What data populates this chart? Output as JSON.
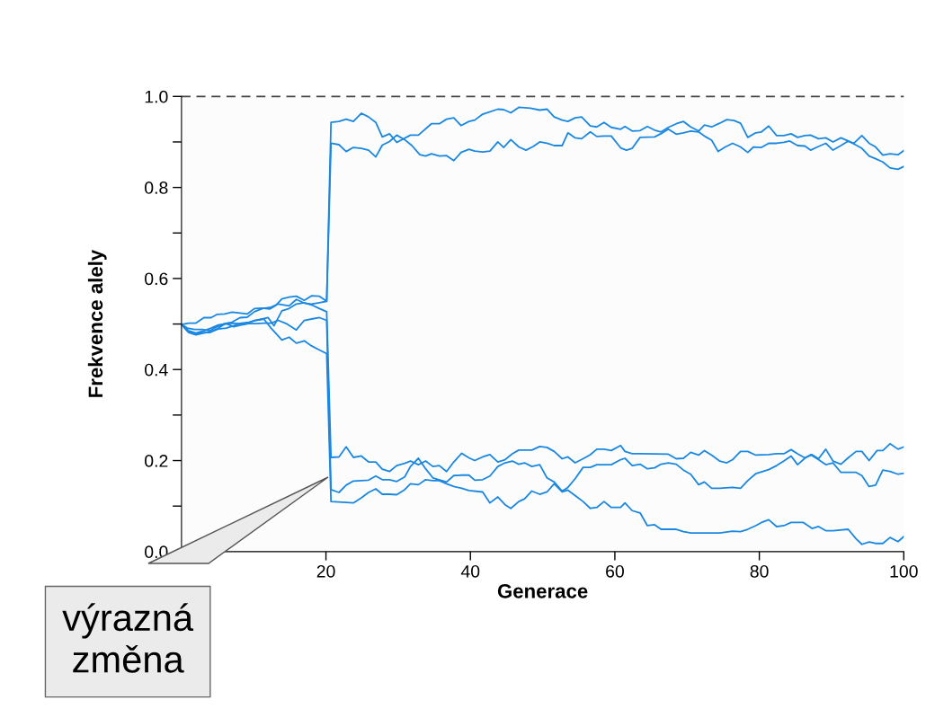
{
  "chart_data": {
    "type": "line",
    "xlabel": "Generace",
    "ylabel": "Frekvence alely",
    "xlim": [
      0,
      100
    ],
    "ylim": [
      0,
      1.0
    ],
    "xticks": [
      20,
      40,
      60,
      80,
      100
    ],
    "yticks": [
      {
        "value": 0,
        "label": "0.0"
      },
      {
        "value": 0.1,
        "label": null
      },
      0.2,
      {
        "value": 0.3,
        "label": null
      },
      0.4,
      {
        "value": 0.5,
        "label": null
      },
      0.6,
      {
        "value": 0.7,
        "label": null
      },
      0.8,
      {
        "value": 0.9,
        "label": null
      },
      {
        "value": 1.0,
        "label": "1.0"
      }
    ],
    "ref_lines": [
      {
        "axis": "y",
        "value": 1.0,
        "color": "#444444",
        "line_style": "dashed"
      }
    ],
    "annotations": [
      "výrazná změna"
    ],
    "series": [
      {
        "color": "#1a87e0",
        "x": [
          0,
          1.0,
          2.0,
          3.1,
          4.1,
          4.9,
          6.0,
          7.0,
          8.1,
          9.1,
          10.1,
          11.2,
          12.2,
          13.0,
          13.9,
          14.9,
          15.9,
          17.0,
          18.0,
          19.1,
          20.1,
          20.7,
          21.8,
          22.8,
          23.8,
          24.9,
          25.9,
          26.9,
          27.8,
          28.8,
          29.8,
          31.7,
          32.8,
          34.6,
          35.7,
          36.7,
          37.7,
          38.7,
          39.8,
          40.6,
          41.7,
          43.8,
          44.6,
          45.6,
          46.7,
          48.3,
          49.6,
          50.6,
          51.6,
          52.7,
          53.5,
          54.5,
          55.4,
          56.6,
          57.5,
          58.5,
          59.5,
          60.8,
          61.4,
          62.4,
          63.5,
          64.5,
          65.5,
          66.4,
          67.4,
          68.5,
          69.5,
          70.5,
          71.6,
          72.4,
          73.4,
          74.5,
          75.5,
          76.5,
          77.4,
          78.4,
          79.5,
          80.3,
          81.3,
          82.4,
          83.4,
          84.4,
          85.3,
          86.3,
          87.1,
          88.2,
          89.2,
          90.2,
          91.3,
          92.3,
          93.1,
          94.2,
          95.2,
          96.1,
          97.1,
          98.1,
          99.2,
          100
        ],
        "values": [
          0.499,
          0.502,
          0.502,
          0.514,
          0.514,
          0.521,
          0.522,
          0.526,
          0.524,
          0.522,
          0.534,
          0.535,
          0.533,
          0.54,
          0.555,
          0.559,
          0.561,
          0.552,
          0.562,
          0.561,
          0.55,
          0.943,
          0.945,
          0.95,
          0.945,
          0.963,
          0.955,
          0.943,
          0.911,
          0.918,
          0.899,
          0.915,
          0.915,
          0.94,
          0.94,
          0.95,
          0.953,
          0.936,
          0.945,
          0.948,
          0.961,
          0.972,
          0.971,
          0.964,
          0.976,
          0.974,
          0.97,
          0.972,
          0.955,
          0.948,
          0.945,
          0.953,
          0.955,
          0.935,
          0.933,
          0.943,
          0.932,
          0.928,
          0.934,
          0.924,
          0.925,
          0.934,
          0.926,
          0.922,
          0.932,
          0.94,
          0.945,
          0.933,
          0.924,
          0.937,
          0.933,
          0.941,
          0.949,
          0.947,
          0.941,
          0.91,
          0.92,
          0.922,
          0.935,
          0.914,
          0.914,
          0.918,
          0.91,
          0.914,
          0.915,
          0.907,
          0.909,
          0.9,
          0.909,
          0.902,
          0.897,
          0.914,
          0.897,
          0.889,
          0.871,
          0.874,
          0.872,
          0.881
        ]
      },
      {
        "color": "#1a87e0",
        "x": [
          0,
          0.8,
          1.8,
          2.9,
          3.9,
          4.9,
          6.0,
          7.0,
          8.1,
          9.1,
          10.1,
          11.2,
          12.4,
          13.4,
          14.9,
          15.9,
          17.0,
          18.0,
          19.1,
          20.1,
          20.7,
          21.8,
          22.8,
          23.8,
          24.9,
          25.9,
          26.9,
          27.8,
          28.8,
          29.8,
          30.9,
          31.9,
          33.0,
          33.8,
          34.6,
          35.7,
          36.7,
          37.7,
          38.7,
          39.8,
          40.6,
          41.7,
          42.7,
          43.8,
          44.6,
          45.6,
          46.7,
          47.7,
          48.7,
          49.6,
          50.6,
          51.6,
          52.7,
          53.5,
          54.5,
          55.4,
          56.6,
          57.5,
          58.5,
          59.5,
          60.8,
          61.6,
          62.4,
          63.5,
          65.5,
          66.6,
          67.4,
          68.5,
          69.5,
          70.5,
          71.6,
          72.6,
          73.4,
          74.3,
          75.3,
          76.3,
          77.4,
          78.4,
          79.2,
          80.3,
          81.3,
          82.4,
          83.4,
          84.2,
          85.3,
          86.3,
          87.1,
          88.2,
          89.2,
          90.2,
          91.3,
          92.3,
          93.4,
          94.2,
          95.2,
          96.1,
          97.1,
          98.1,
          99.2,
          100
        ],
        "values": [
          0.499,
          0.491,
          0.488,
          0.488,
          0.485,
          0.494,
          0.501,
          0.504,
          0.514,
          0.515,
          0.527,
          0.534,
          0.537,
          0.544,
          0.54,
          0.554,
          0.546,
          0.544,
          0.547,
          0.55,
          0.897,
          0.894,
          0.879,
          0.888,
          0.886,
          0.882,
          0.867,
          0.893,
          0.901,
          0.915,
          0.905,
          0.892,
          0.872,
          0.869,
          0.874,
          0.869,
          0.87,
          0.859,
          0.877,
          0.884,
          0.88,
          0.878,
          0.88,
          0.9,
          0.888,
          0.905,
          0.889,
          0.882,
          0.89,
          0.9,
          0.897,
          0.892,
          0.892,
          0.92,
          0.909,
          0.907,
          0.922,
          0.912,
          0.913,
          0.913,
          0.887,
          0.882,
          0.886,
          0.91,
          0.911,
          0.92,
          0.928,
          0.917,
          0.92,
          0.924,
          0.922,
          0.911,
          0.904,
          0.879,
          0.889,
          0.897,
          0.889,
          0.877,
          0.889,
          0.888,
          0.897,
          0.897,
          0.899,
          0.902,
          0.892,
          0.891,
          0.882,
          0.89,
          0.897,
          0.882,
          0.892,
          0.902,
          0.893,
          0.886,
          0.869,
          0.863,
          0.856,
          0.843,
          0.84,
          0.846
        ]
      },
      {
        "color": "#1a87e0",
        "x": [
          0,
          0.8,
          1.8,
          2.9,
          3.9,
          4.9,
          6.0,
          7.0,
          8.1,
          9.1,
          10.1,
          11.2,
          12.0,
          12.8,
          13.9,
          14.9,
          15.9,
          17.0,
          18.0,
          19.1,
          20.1,
          20.7,
          21.8,
          22.8,
          23.8,
          24.9,
          25.9,
          26.9,
          27.8,
          28.8,
          29.8,
          30.9,
          31.7,
          32.8,
          33.8,
          34.8,
          35.7,
          36.7,
          37.7,
          38.8,
          39.8,
          40.6,
          41.7,
          42.7,
          43.8,
          44.8,
          45.8,
          46.7,
          48.5,
          49.6,
          50.6,
          51.6,
          52.7,
          53.5,
          54.5,
          55.6,
          56.6,
          57.5,
          58.5,
          59.5,
          60.8,
          61.4,
          62.4,
          63.5,
          67.4,
          68.5,
          69.5,
          70.5,
          71.6,
          72.4,
          73.4,
          74.5,
          75.5,
          76.3,
          77.4,
          78.4,
          79.5,
          81.3,
          82.4,
          83.4,
          84.4,
          85.3,
          86.3,
          87.3,
          88.2,
          89.2,
          90.2,
          91.3,
          92.3,
          93.4,
          94.2,
          95.2,
          96.3,
          97.1,
          98.1,
          99.2,
          100
        ],
        "values": [
          0.499,
          0.485,
          0.478,
          0.481,
          0.481,
          0.489,
          0.5,
          0.502,
          0.501,
          0.501,
          0.508,
          0.511,
          0.514,
          0.496,
          0.529,
          0.534,
          0.544,
          0.547,
          0.542,
          0.534,
          0.527,
          0.207,
          0.208,
          0.23,
          0.207,
          0.21,
          0.197,
          0.197,
          0.181,
          0.176,
          0.189,
          0.194,
          0.199,
          0.191,
          0.199,
          0.187,
          0.189,
          0.176,
          0.197,
          0.216,
          0.206,
          0.2,
          0.208,
          0.213,
          0.197,
          0.202,
          0.215,
          0.223,
          0.223,
          0.231,
          0.229,
          0.22,
          0.204,
          0.208,
          0.195,
          0.204,
          0.213,
          0.225,
          0.225,
          0.222,
          0.233,
          0.22,
          0.215,
          0.215,
          0.214,
          0.204,
          0.205,
          0.218,
          0.212,
          0.222,
          0.212,
          0.199,
          0.195,
          0.202,
          0.22,
          0.22,
          0.212,
          0.213,
          0.215,
          0.215,
          0.224,
          0.215,
          0.206,
          0.213,
          0.204,
          0.225,
          0.199,
          0.192,
          0.206,
          0.22,
          0.22,
          0.2,
          0.222,
          0.222,
          0.237,
          0.225,
          0.23
        ]
      },
      {
        "color": "#1a87e0",
        "x": [
          0,
          1.0,
          2.0,
          3.1,
          4.1,
          5.1,
          6.2,
          7.2,
          8.3,
          9.3,
          10.3,
          11.4,
          12.4,
          13.4,
          14.5,
          15.9,
          17.0,
          18.0,
          19.1,
          20.1,
          20.7,
          21.8,
          22.8,
          23.8,
          25.9,
          26.9,
          27.8,
          28.8,
          29.8,
          30.9,
          31.7,
          32.8,
          33.8,
          34.8,
          36.7,
          37.7,
          38.8,
          39.8,
          40.6,
          41.7,
          42.7,
          43.8,
          44.8,
          45.8,
          46.7,
          47.5,
          48.5,
          49.6,
          50.6,
          51.6,
          52.7,
          53.5,
          54.5,
          55.6,
          56.6,
          57.5,
          58.5,
          59.5,
          60.8,
          61.4,
          62.4,
          63.5,
          64.5,
          65.5,
          66.4,
          67.4,
          68.5,
          69.5,
          70.5,
          71.6,
          72.4,
          73.4,
          74.5,
          76.3,
          77.4,
          78.4,
          79.5,
          80.5,
          81.3,
          82.4,
          83.4,
          84.4,
          85.3,
          86.3,
          87.1,
          88.2,
          89.2,
          90.2,
          91.3,
          92.3,
          93.4,
          94.2,
          95.2,
          96.1,
          97.1,
          98.1,
          99.2,
          100
        ],
        "values": [
          0.499,
          0.485,
          0.48,
          0.485,
          0.491,
          0.498,
          0.501,
          0.494,
          0.498,
          0.501,
          0.501,
          0.502,
          0.502,
          0.508,
          0.501,
          0.487,
          0.508,
          0.511,
          0.514,
          0.508,
          0.136,
          0.13,
          0.146,
          0.155,
          0.157,
          0.166,
          0.158,
          0.158,
          0.154,
          0.164,
          0.187,
          0.205,
          0.182,
          0.162,
          0.153,
          0.167,
          0.168,
          0.168,
          0.157,
          0.158,
          0.166,
          0.187,
          0.195,
          0.199,
          0.192,
          0.195,
          0.187,
          0.191,
          0.162,
          0.153,
          0.133,
          0.141,
          0.16,
          0.185,
          0.185,
          0.191,
          0.191,
          0.191,
          0.202,
          0.205,
          0.189,
          0.192,
          0.182,
          0.184,
          0.192,
          0.195,
          0.192,
          0.179,
          0.17,
          0.147,
          0.153,
          0.139,
          0.139,
          0.141,
          0.139,
          0.156,
          0.171,
          0.176,
          0.18,
          0.189,
          0.199,
          0.21,
          0.191,
          0.205,
          0.213,
          0.202,
          0.191,
          0.195,
          0.174,
          0.174,
          0.174,
          0.167,
          0.143,
          0.146,
          0.179,
          0.176,
          0.17,
          0.172
        ]
      },
      {
        "color": "#1a87e0",
        "x": [
          0,
          1.0,
          2.0,
          3.1,
          4.1,
          5.1,
          6.2,
          7.2,
          8.3,
          9.3,
          10.3,
          11.4,
          12.4,
          13.9,
          14.9,
          15.9,
          17.0,
          18.0,
          19.1,
          20.1,
          20.7,
          22.8,
          23.8,
          24.9,
          25.9,
          26.9,
          27.8,
          28.8,
          29.8,
          30.9,
          31.7,
          32.8,
          33.8,
          34.8,
          35.7,
          36.7,
          37.7,
          38.8,
          39.8,
          41.7,
          42.7,
          43.8,
          44.8,
          45.6,
          46.7,
          47.5,
          48.5,
          49.6,
          50.6,
          51.6,
          52.7,
          53.5,
          54.5,
          55.6,
          56.6,
          57.5,
          58.5,
          59.5,
          60.8,
          61.4,
          62.4,
          63.5,
          64.5,
          65.5,
          66.4,
          68.5,
          69.5,
          70.5,
          74.5,
          76.3,
          77.4,
          78.4,
          79.5,
          80.3,
          81.3,
          82.4,
          83.4,
          84.4,
          86.1,
          87.3,
          88.2,
          89.2,
          90.2,
          92.3,
          93.4,
          94.2,
          95.2,
          96.1,
          97.1,
          98.1,
          99.2,
          100
        ],
        "values": [
          0.499,
          0.481,
          0.476,
          0.48,
          0.483,
          0.489,
          0.491,
          0.496,
          0.502,
          0.504,
          0.508,
          0.511,
          0.491,
          0.465,
          0.471,
          0.458,
          0.463,
          0.452,
          0.443,
          0.435,
          0.11,
          0.108,
          0.107,
          0.118,
          0.13,
          0.138,
          0.126,
          0.126,
          0.125,
          0.136,
          0.149,
          0.147,
          0.158,
          0.156,
          0.156,
          0.149,
          0.143,
          0.139,
          0.134,
          0.131,
          0.107,
          0.12,
          0.103,
          0.095,
          0.11,
          0.116,
          0.133,
          0.126,
          0.131,
          0.149,
          0.131,
          0.135,
          0.123,
          0.11,
          0.095,
          0.097,
          0.11,
          0.097,
          0.097,
          0.107,
          0.09,
          0.085,
          0.057,
          0.059,
          0.049,
          0.049,
          0.044,
          0.041,
          0.041,
          0.045,
          0.044,
          0.049,
          0.057,
          0.064,
          0.07,
          0.055,
          0.057,
          0.064,
          0.064,
          0.051,
          0.055,
          0.046,
          0.046,
          0.049,
          0.028,
          0.016,
          0.021,
          0.018,
          0.018,
          0.031,
          0.022,
          0.033
        ]
      }
    ]
  }
}
